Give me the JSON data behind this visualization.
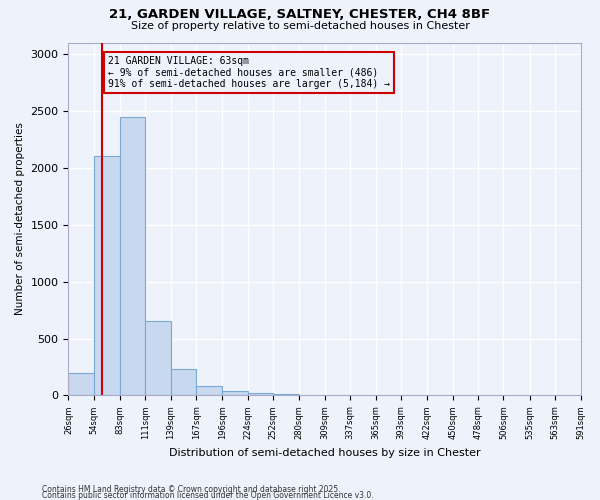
{
  "title1": "21, GARDEN VILLAGE, SALTNEY, CHESTER, CH4 8BF",
  "title2": "Size of property relative to semi-detached houses in Chester",
  "xlabel": "Distribution of semi-detached houses by size in Chester",
  "ylabel": "Number of semi-detached properties",
  "footnote1": "Contains HM Land Registry data © Crown copyright and database right 2025.",
  "footnote2": "Contains public sector information licensed under the Open Government Licence v3.0.",
  "annotation_title": "21 GARDEN VILLAGE: 63sqm",
  "annotation_line2": "← 9% of semi-detached houses are smaller (486)",
  "annotation_line3": "91% of semi-detached houses are larger (5,184) →",
  "subject_size": 63,
  "bin_edges": [
    26,
    54,
    83,
    111,
    139,
    167,
    196,
    224,
    252,
    280,
    309,
    337,
    365,
    393,
    422,
    450,
    478,
    506,
    535,
    563,
    591
  ],
  "bar_heights": [
    200,
    2100,
    2450,
    650,
    230,
    80,
    40,
    20,
    10,
    5,
    2,
    1,
    0,
    0,
    0,
    0,
    0,
    0,
    0,
    0
  ],
  "bar_color": "#c8d8ee",
  "bar_edge_color": "#7aaad4",
  "subject_line_color": "#cc0000",
  "ylim": [
    0,
    3100
  ],
  "yticks": [
    0,
    500,
    1000,
    1500,
    2000,
    2500,
    3000
  ],
  "bg_color": "#eef2fb"
}
